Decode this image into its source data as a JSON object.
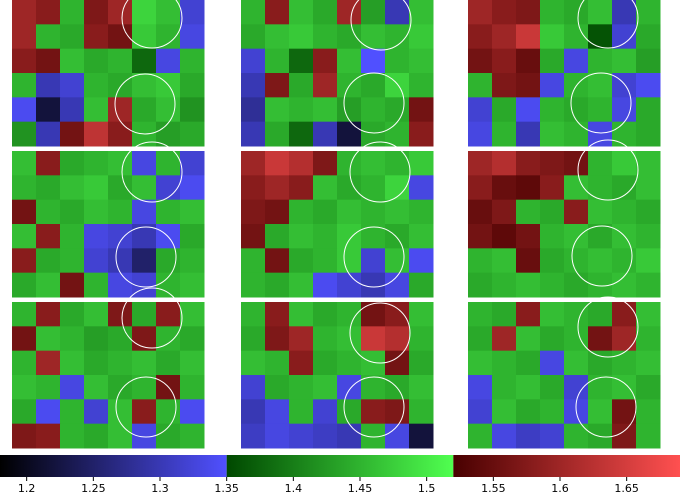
{
  "chart_data": {
    "type": "heatmap",
    "panels": [
      {
        "values": [
          [
            1.6,
            1.58,
            1.45,
            1.57,
            1.6,
            1.48,
            1.46,
            1.32
          ],
          [
            1.6,
            1.45,
            1.44,
            1.58,
            1.56,
            1.47,
            1.45,
            1.33
          ],
          [
            1.58,
            1.56,
            1.46,
            1.44,
            1.45,
            1.38,
            1.33,
            1.45
          ],
          [
            1.45,
            1.3,
            1.32,
            1.45,
            1.44,
            1.46,
            1.47,
            1.44
          ],
          [
            1.34,
            1.22,
            1.3,
            1.46,
            1.6,
            1.44,
            1.46,
            1.42
          ],
          [
            1.42,
            1.3,
            1.56,
            1.63,
            1.58,
            1.45,
            1.43,
            1.44
          ]
        ]
      },
      {
        "values": [
          [
            1.45,
            1.58,
            1.46,
            1.44,
            1.6,
            1.43,
            1.3,
            1.46
          ],
          [
            1.44,
            1.46,
            1.47,
            1.45,
            1.44,
            1.46,
            1.45,
            1.47
          ],
          [
            1.32,
            1.45,
            1.38,
            1.58,
            1.46,
            1.35,
            1.45,
            1.46
          ],
          [
            1.3,
            1.57,
            1.44,
            1.6,
            1.45,
            1.44,
            1.48,
            1.45
          ],
          [
            1.28,
            1.46,
            1.45,
            1.46,
            1.43,
            1.45,
            1.44,
            1.56
          ],
          [
            1.3,
            1.44,
            1.38,
            1.3,
            1.22,
            1.44,
            1.45,
            1.58
          ]
        ]
      },
      {
        "values": [
          [
            1.6,
            1.58,
            1.57,
            1.45,
            1.44,
            1.46,
            1.3,
            1.45
          ],
          [
            1.58,
            1.6,
            1.64,
            1.47,
            1.45,
            1.36,
            1.32,
            1.44
          ],
          [
            1.56,
            1.58,
            1.55,
            1.44,
            1.33,
            1.45,
            1.46,
            1.43
          ],
          [
            1.45,
            1.57,
            1.56,
            1.33,
            1.45,
            1.46,
            1.32,
            1.34
          ],
          [
            1.32,
            1.44,
            1.34,
            1.45,
            1.44,
            1.45,
            1.33,
            1.44
          ],
          [
            1.33,
            1.45,
            1.3,
            1.46,
            1.45,
            1.33,
            1.45,
            1.44
          ]
        ]
      },
      {
        "values": [
          [
            1.46,
            1.58,
            1.44,
            1.45,
            1.46,
            1.33,
            1.45,
            1.32
          ],
          [
            1.45,
            1.44,
            1.46,
            1.47,
            1.44,
            1.46,
            1.32,
            1.34
          ],
          [
            1.56,
            1.45,
            1.44,
            1.46,
            1.45,
            1.33,
            1.45,
            1.46
          ],
          [
            1.46,
            1.58,
            1.45,
            1.33,
            1.32,
            1.3,
            1.34,
            1.44
          ],
          [
            1.58,
            1.44,
            1.45,
            1.32,
            1.3,
            1.25,
            1.44,
            1.45
          ],
          [
            1.44,
            1.46,
            1.56,
            1.45,
            1.33,
            1.32,
            1.45,
            1.46
          ]
        ]
      },
      {
        "values": [
          [
            1.6,
            1.64,
            1.62,
            1.57,
            1.45,
            1.46,
            1.45,
            1.47
          ],
          [
            1.58,
            1.6,
            1.58,
            1.46,
            1.44,
            1.45,
            1.48,
            1.33
          ],
          [
            1.57,
            1.56,
            1.45,
            1.44,
            1.46,
            1.45,
            1.46,
            1.45
          ],
          [
            1.56,
            1.44,
            1.46,
            1.45,
            1.47,
            1.45,
            1.44,
            1.46
          ],
          [
            1.45,
            1.56,
            1.44,
            1.45,
            1.47,
            1.32,
            1.46,
            1.34
          ],
          [
            1.45,
            1.44,
            1.46,
            1.34,
            1.32,
            1.3,
            1.33,
            1.44
          ]
        ]
      },
      {
        "values": [
          [
            1.6,
            1.62,
            1.58,
            1.57,
            1.56,
            1.45,
            1.47,
            1.46
          ],
          [
            1.58,
            1.55,
            1.54,
            1.58,
            1.46,
            1.45,
            1.44,
            1.46
          ],
          [
            1.55,
            1.57,
            1.45,
            1.44,
            1.58,
            1.46,
            1.45,
            1.44
          ],
          [
            1.56,
            1.54,
            1.56,
            1.45,
            1.46,
            1.44,
            1.46,
            1.45
          ],
          [
            1.45,
            1.46,
            1.55,
            1.44,
            1.45,
            1.46,
            1.45,
            1.47
          ],
          [
            1.44,
            1.45,
            1.46,
            1.45,
            1.44,
            1.45,
            1.46,
            1.45
          ]
        ]
      },
      {
        "values": [
          [
            1.45,
            1.58,
            1.44,
            1.46,
            1.57,
            1.44,
            1.58,
            1.46
          ],
          [
            1.56,
            1.46,
            1.45,
            1.43,
            1.44,
            1.57,
            1.45,
            1.44
          ],
          [
            1.45,
            1.6,
            1.46,
            1.44,
            1.45,
            1.46,
            1.44,
            1.46
          ],
          [
            1.46,
            1.45,
            1.33,
            1.46,
            1.44,
            1.45,
            1.56,
            1.45
          ],
          [
            1.44,
            1.34,
            1.45,
            1.32,
            1.46,
            1.58,
            1.45,
            1.34
          ],
          [
            1.57,
            1.58,
            1.45,
            1.44,
            1.46,
            1.33,
            1.44,
            1.45
          ]
        ]
      },
      {
        "values": [
          [
            1.45,
            1.58,
            1.46,
            1.44,
            1.45,
            1.56,
            1.58,
            1.46
          ],
          [
            1.44,
            1.57,
            1.6,
            1.45,
            1.46,
            1.64,
            1.62,
            1.45
          ],
          [
            1.46,
            1.45,
            1.58,
            1.44,
            1.45,
            1.46,
            1.56,
            1.44
          ],
          [
            1.32,
            1.44,
            1.45,
            1.46,
            1.33,
            1.45,
            1.44,
            1.46
          ],
          [
            1.3,
            1.33,
            1.45,
            1.32,
            1.44,
            1.58,
            1.57,
            1.45
          ],
          [
            1.31,
            1.33,
            1.32,
            1.31,
            1.3,
            1.45,
            1.33,
            1.22
          ]
        ]
      },
      {
        "values": [
          [
            1.45,
            1.44,
            1.58,
            1.46,
            1.45,
            1.44,
            1.58,
            1.46
          ],
          [
            1.44,
            1.6,
            1.46,
            1.44,
            1.45,
            1.56,
            1.6,
            1.45
          ],
          [
            1.46,
            1.45,
            1.44,
            1.33,
            1.46,
            1.44,
            1.45,
            1.46
          ],
          [
            1.33,
            1.45,
            1.46,
            1.44,
            1.32,
            1.45,
            1.46,
            1.44
          ],
          [
            1.32,
            1.46,
            1.44,
            1.45,
            1.33,
            1.46,
            1.56,
            1.45
          ],
          [
            1.45,
            1.33,
            1.31,
            1.32,
            1.45,
            1.44,
            1.57,
            1.45
          ]
        ]
      }
    ],
    "boundaries": [
      1.18,
      1.35,
      1.52,
      1.69
    ],
    "colors": [
      "#000000",
      "#5050ff",
      "#004800",
      "#50ff50",
      "#480000",
      "#ff5050"
    ],
    "xlim": [
      1.18,
      1.69
    ],
    "xticks": [
      1.2,
      1.25,
      1.3,
      1.35,
      1.4,
      1.45,
      1.5,
      1.55,
      1.6,
      1.65
    ]
  }
}
